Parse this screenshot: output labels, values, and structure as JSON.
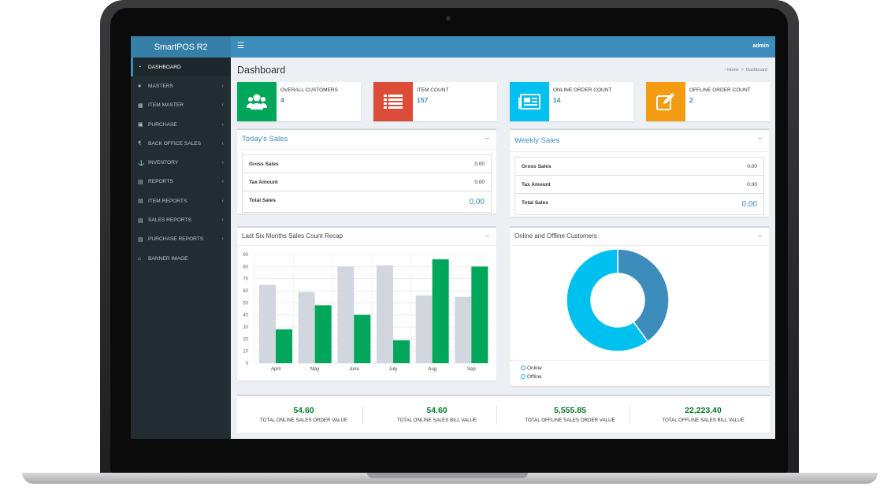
{
  "app": {
    "brand": "SmartPOS R2",
    "user": "admin",
    "menu_icon": "hamburger-icon"
  },
  "sidebar": {
    "items": [
      {
        "label": "DASHBOARD",
        "icon": "dashboard-icon",
        "active": true
      },
      {
        "label": "MASTERS",
        "icon": "globe-icon"
      },
      {
        "label": "ITEM MASTER",
        "icon": "grid-icon"
      },
      {
        "label": "PURCHASE",
        "icon": "cart-icon"
      },
      {
        "label": "BACK OFFICE SALES",
        "icon": "rupee-icon"
      },
      {
        "label": "INVENTORY",
        "icon": "anchor-icon"
      },
      {
        "label": "REPORTS",
        "icon": "file-icon"
      },
      {
        "label": "ITEM REPORTS",
        "icon": "file-icon"
      },
      {
        "label": "SALES REPORTS",
        "icon": "file-icon"
      },
      {
        "label": "PURCHASE REPORTS",
        "icon": "file-icon"
      },
      {
        "label": "BANNER IMAGE",
        "icon": "home-icon"
      }
    ]
  },
  "page": {
    "title": "Dashboard",
    "breadcrumb_home": "Home",
    "breadcrumb_current": "Dashboard"
  },
  "info_boxes": [
    {
      "label": "OVERALL CUSTOMERS",
      "value": "4",
      "color": "#00a65a",
      "icon": "users-icon"
    },
    {
      "label": "ITEM COUNT",
      "value": "157",
      "color": "#dd4b39",
      "icon": "list-icon"
    },
    {
      "label": "ONLINE ORDER COUNT",
      "value": "14",
      "color": "#00c0ef",
      "icon": "newspaper-icon"
    },
    {
      "label": "OFFLINE ORDER COUNT",
      "value": "2",
      "color": "#f39c12",
      "icon": "edit-icon"
    }
  ],
  "todays_sales": {
    "title": "Today's Sales",
    "gross_label": "Gross Sales",
    "gross_value": "0.00",
    "tax_label": "Tax Amount",
    "tax_value": "0.00",
    "total_label": "Total Sales",
    "total_value": "0.00"
  },
  "weekly_sales": {
    "title": "Weekly Sales",
    "gross_label": "Gross Sales",
    "gross_value": "0.00",
    "tax_label": "Tax Amount",
    "tax_value": "0.00",
    "total_label": "Total Sales",
    "total_value": "0.00"
  },
  "bar_box": {
    "title": "Last Six Months Sales Count Recap"
  },
  "donut_box": {
    "title": "Online and Offline Customers"
  },
  "chart_data": [
    {
      "type": "bar",
      "title": "Last Six Months Sales Count Recap",
      "categories": [
        "April",
        "May",
        "June",
        "July",
        "Aug",
        "Sep"
      ],
      "series": [
        {
          "values": [
            65,
            59,
            80,
            81,
            56,
            55
          ],
          "color": "#d2d6de"
        },
        {
          "values": [
            28,
            48,
            40,
            19,
            86,
            80
          ],
          "color": "#00a65a"
        }
      ],
      "ylim": [
        0,
        90
      ],
      "yticks": [
        0,
        10,
        20,
        30,
        40,
        50,
        60,
        70,
        80,
        90
      ],
      "grid": true
    },
    {
      "type": "pie",
      "title": "Online and Offline Customers",
      "labels": [
        "Online",
        "Offline"
      ],
      "values": [
        40,
        60
      ],
      "colors": [
        "#3c8dbc",
        "#00c0ef"
      ],
      "donut": true,
      "legend": "bottom-left"
    }
  ],
  "totals": [
    {
      "value": "54.60",
      "label": "TOTAL ONLINE SALES ORDER VALUE"
    },
    {
      "value": "54.60",
      "label": "TOTAL ONLINE SALES BILL VALUE"
    },
    {
      "value": "5,555.85",
      "label": "TOTAL OFFLINE SALES ORDER VALUE"
    },
    {
      "value": "22,223.40",
      "label": "TOTAL OFFLINE SALES BILL VALUE"
    }
  ]
}
